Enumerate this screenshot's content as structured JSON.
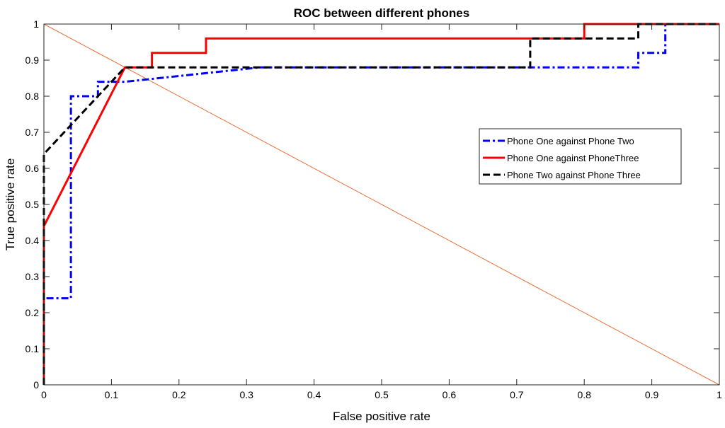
{
  "chart_data": {
    "type": "line",
    "title": "ROC between different phones",
    "xlabel": "False positive rate",
    "ylabel": "True positive rate",
    "xlim": [
      0,
      1
    ],
    "ylim": [
      0,
      1
    ],
    "xticks": [
      "0",
      "0.1",
      "0.2",
      "0.3",
      "0.4",
      "0.5",
      "0.6",
      "0.7",
      "0.8",
      "0.9",
      "1"
    ],
    "yticks": [
      "0",
      "0.1",
      "0.2",
      "0.3",
      "0.4",
      "0.5",
      "0.6",
      "0.7",
      "0.8",
      "0.9",
      "1"
    ],
    "grid": false,
    "legend_position": "right-center",
    "series": [
      {
        "name": "Phone One against Phone Two",
        "color": "#0000ff",
        "dash": "dash-dot",
        "x": [
          0,
          0,
          0.04,
          0.04,
          0.08,
          0.08,
          0.12,
          0.32,
          0.88,
          0.88,
          0.92,
          0.92,
          1
        ],
        "y": [
          0,
          0.24,
          0.24,
          0.8,
          0.8,
          0.84,
          0.84,
          0.88,
          0.88,
          0.92,
          0.92,
          1,
          1
        ]
      },
      {
        "name": "Phone One against PhoneThree",
        "color": "#ff0000",
        "dash": "solid",
        "x": [
          0,
          0,
          0.12,
          0.16,
          0.16,
          0.24,
          0.24,
          0.8,
          0.8,
          1
        ],
        "y": [
          0,
          0.44,
          0.88,
          0.88,
          0.92,
          0.92,
          0.96,
          0.96,
          1,
          1
        ]
      },
      {
        "name": "Phone Two against Phone Three",
        "color": "#000000",
        "dash": "dashed",
        "x": [
          0,
          0,
          0.04,
          0.12,
          0.72,
          0.72,
          0.88,
          0.88,
          1
        ],
        "y": [
          0,
          0.64,
          0.72,
          0.88,
          0.88,
          0.96,
          0.96,
          1,
          1
        ]
      }
    ],
    "reference_line": {
      "color": "#e8703a",
      "x": [
        0,
        1
      ],
      "y": [
        1,
        0
      ]
    }
  }
}
